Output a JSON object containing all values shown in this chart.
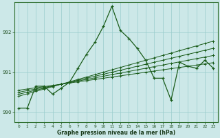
{
  "xlabel": "Graphe pression niveau de la mer (hPa)",
  "bg_color": "#cce8e8",
  "grid_color": "#99cccc",
  "line_color": "#1a5c1a",
  "x_ticks": [
    0,
    1,
    2,
    3,
    4,
    5,
    6,
    7,
    8,
    9,
    10,
    11,
    12,
    13,
    14,
    15,
    16,
    17,
    18,
    19,
    20,
    21,
    22,
    23
  ],
  "ylim": [
    989.75,
    992.75
  ],
  "yticks": [
    990,
    991,
    992
  ],
  "trend_lines": [
    [
      990.55,
      990.58,
      990.61,
      990.64,
      990.67,
      990.7,
      990.73,
      990.76,
      990.79,
      990.82,
      990.85,
      990.88,
      990.91,
      990.94,
      990.97,
      991.0,
      991.03,
      991.06,
      991.09,
      991.12,
      991.15,
      991.18,
      991.21,
      991.24
    ],
    [
      990.5,
      990.54,
      990.58,
      990.62,
      990.66,
      990.7,
      990.74,
      990.78,
      990.82,
      990.86,
      990.9,
      990.94,
      990.98,
      991.02,
      991.06,
      991.1,
      991.14,
      991.18,
      991.22,
      991.26,
      991.3,
      991.34,
      991.38,
      991.42
    ],
    [
      990.45,
      990.5,
      990.55,
      990.6,
      990.65,
      990.7,
      990.75,
      990.8,
      990.85,
      990.9,
      990.95,
      991.0,
      991.05,
      991.1,
      991.15,
      991.2,
      991.25,
      991.3,
      991.35,
      991.4,
      991.45,
      991.5,
      991.55,
      991.6
    ],
    [
      990.4,
      990.46,
      990.52,
      990.58,
      990.64,
      990.7,
      990.76,
      990.82,
      990.88,
      990.94,
      991.0,
      991.06,
      991.12,
      991.18,
      991.24,
      991.3,
      991.36,
      991.42,
      991.48,
      991.54,
      991.6,
      991.66,
      991.72,
      991.78
    ]
  ],
  "main_line": [
    990.1,
    990.1,
    990.65,
    990.65,
    990.45,
    990.6,
    990.75,
    991.1,
    991.45,
    991.75,
    992.15,
    992.65,
    992.05,
    991.85,
    991.6,
    991.3,
    990.85,
    990.85,
    990.3,
    991.25,
    991.15,
    991.1,
    991.3,
    991.1
  ]
}
